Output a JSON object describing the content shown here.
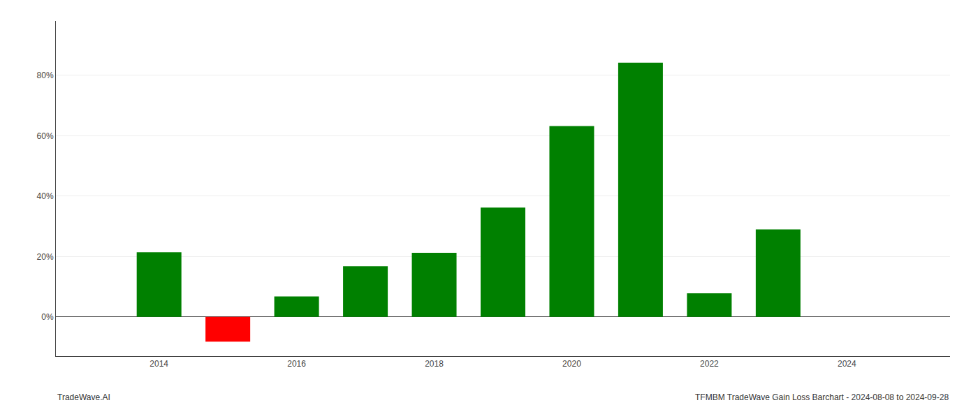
{
  "chart_data": {
    "type": "bar",
    "x": [
      2014,
      2015,
      2016,
      2017,
      2018,
      2019,
      2020,
      2021,
      2022,
      2023
    ],
    "values": [
      0.214,
      -0.082,
      0.068,
      0.168,
      0.212,
      0.362,
      0.632,
      0.842,
      0.078,
      0.29
    ],
    "colors": [
      "#008000",
      "#ff0000",
      "#008000",
      "#008000",
      "#008000",
      "#008000",
      "#008000",
      "#008000",
      "#008000",
      "#008000"
    ],
    "xlim": [
      2012.5,
      2025.5
    ],
    "xticks": [
      2014,
      2016,
      2018,
      2020,
      2022,
      2024
    ],
    "ylim": [
      -0.13,
      0.98
    ],
    "yticks": [
      {
        "value": 0.0,
        "label": "0%"
      },
      {
        "value": 0.2,
        "label": "20%"
      },
      {
        "value": 0.4,
        "label": "40%"
      },
      {
        "value": 0.6,
        "label": "60%"
      },
      {
        "value": 0.8,
        "label": "80%"
      }
    ],
    "grid": true,
    "annotations": [
      "TradeWave.AI",
      "TFMBM TradeWave Gain Loss Barchart - 2024-08-08 to 2024-09-28"
    ]
  }
}
